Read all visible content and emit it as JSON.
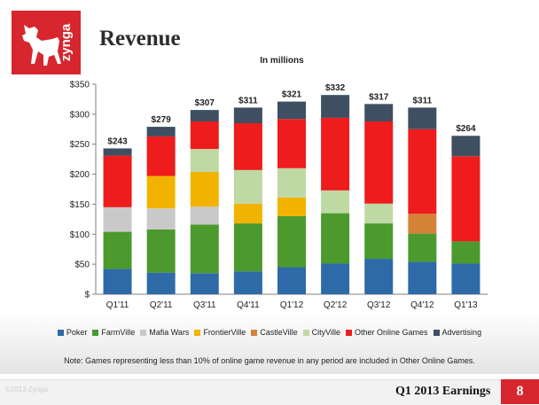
{
  "slide": {
    "title": "Revenue",
    "logo_text": "zynga",
    "copyright": "©2013 Zynga",
    "footer_title": "Q1 2013 Earnings",
    "page_number": "8",
    "note": "Note: Games representing less than 10% of online game revenue in any period are included in Other Online Games.",
    "brand_color": "#d7262e"
  },
  "chart_data": {
    "type": "bar",
    "stacked": true,
    "subtitle": "In millions",
    "categories": [
      "Q1'11",
      "Q2'11",
      "Q3'11",
      "Q4'11",
      "Q1'12",
      "Q2'12",
      "Q3'12",
      "Q4'12",
      "Q1'13"
    ],
    "totals_labels": [
      "$243",
      "$279",
      "$307",
      "$311",
      "$321",
      "$332",
      "$317",
      "$311",
      "$264"
    ],
    "totals": [
      243,
      279,
      307,
      311,
      321,
      332,
      317,
      311,
      264
    ],
    "y_ticks": [
      "$",
      "$50",
      "$100",
      "$150",
      "$200",
      "$250",
      "$300",
      "$350"
    ],
    "ylim": [
      0,
      350
    ],
    "grid": false,
    "legend_position": "bottom",
    "series": [
      {
        "name": "Poker",
        "color": "#2e6aa8",
        "values": [
          42,
          36,
          35,
          38,
          45,
          51,
          59,
          54,
          51
        ]
      },
      {
        "name": "FarmVille",
        "color": "#4c9a2e",
        "values": [
          62,
          72,
          81,
          80,
          85,
          84,
          59,
          47,
          37
        ]
      },
      {
        "name": "Mafia Wars",
        "color": "#c9c9c9",
        "values": [
          41,
          35,
          30,
          0,
          0,
          0,
          0,
          0,
          0
        ]
      },
      {
        "name": "FrontierVille",
        "color": "#f2b300",
        "values": [
          0,
          54,
          58,
          33,
          31,
          0,
          0,
          0,
          0
        ]
      },
      {
        "name": "CastleVille",
        "color": "#d58236",
        "values": [
          0,
          0,
          0,
          0,
          0,
          0,
          0,
          33,
          0
        ]
      },
      {
        "name": "CityVille",
        "color": "#bfd9a4",
        "values": [
          0,
          0,
          38,
          56,
          49,
          38,
          33,
          0,
          0
        ]
      },
      {
        "name": "Other Online Games",
        "color": "#ee1c1c",
        "values": [
          86,
          66,
          46,
          78,
          82,
          121,
          137,
          141,
          142
        ]
      },
      {
        "name": "Advertising",
        "color": "#3d4f61",
        "values": [
          12,
          16,
          19,
          26,
          29,
          38,
          29,
          36,
          34
        ]
      }
    ]
  }
}
